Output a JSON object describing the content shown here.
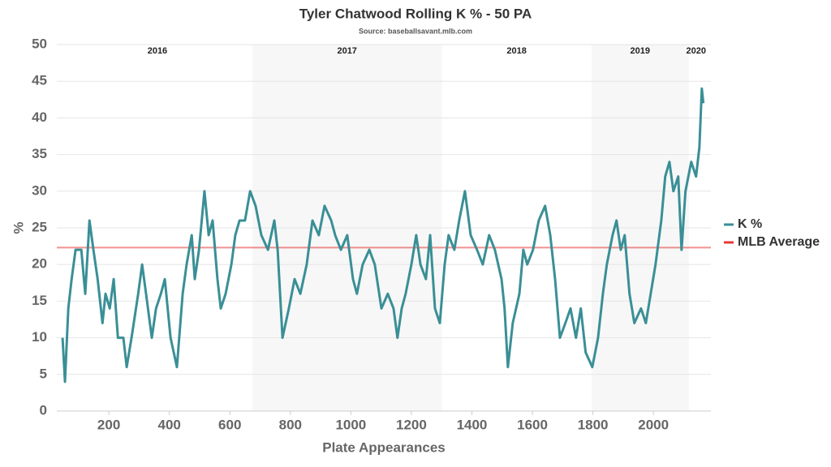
{
  "chart_data": {
    "type": "line",
    "title": "Tyler Chatwood Rolling K % - 50 PA",
    "subtitle": "Source: baseballsavant.mlb.com",
    "xlabel": "Plate Appearances",
    "ylabel": "%",
    "xlim": [
      28,
      2190
    ],
    "ylim": [
      0,
      50
    ],
    "xticks": [
      200,
      400,
      600,
      800,
      1000,
      1200,
      1400,
      1600,
      1800,
      2000
    ],
    "yticks": [
      0,
      5,
      10,
      15,
      20,
      25,
      30,
      35,
      40,
      45,
      50
    ],
    "grid": true,
    "legend": "right",
    "seasons": [
      {
        "label": "2016",
        "start": 47,
        "end": 674,
        "shaded": false
      },
      {
        "label": "2017",
        "start": 674,
        "end": 1301,
        "shaded": true
      },
      {
        "label": "2018",
        "start": 1301,
        "end": 1795,
        "shaded": false
      },
      {
        "label": "2019",
        "start": 1795,
        "end": 2117,
        "shaded": true
      },
      {
        "label": "2020",
        "start": 2117,
        "end": 2165,
        "shaded": false
      }
    ],
    "reference_line": {
      "name": "MLB Average",
      "value": 22.3,
      "color": "#e53935"
    },
    "x": [
      47,
      55,
      66,
      77,
      90,
      109,
      122,
      136,
      149,
      163,
      179,
      189,
      203,
      216,
      230,
      248,
      259,
      275,
      297,
      310,
      323,
      342,
      356,
      372,
      385,
      404,
      425,
      444,
      457,
      474,
      484,
      498,
      516,
      530,
      543,
      559,
      570,
      586,
      605,
      618,
      632,
      650,
      667,
      685,
      704,
      726,
      747,
      758,
      774,
      795,
      814,
      833,
      854,
      873,
      894,
      913,
      935,
      948,
      967,
      988,
      1007,
      1020,
      1039,
      1061,
      1079,
      1101,
      1122,
      1141,
      1154,
      1168,
      1181,
      1200,
      1216,
      1230,
      1248,
      1262,
      1278,
      1294,
      1310,
      1323,
      1342,
      1358,
      1377,
      1396,
      1417,
      1436,
      1457,
      1476,
      1498,
      1508,
      1519,
      1535,
      1557,
      1570,
      1583,
      1602,
      1621,
      1642,
      1659,
      1675,
      1691,
      1709,
      1726,
      1744,
      1760,
      1776,
      1798,
      1817,
      1833,
      1846,
      1865,
      1878,
      1892,
      1905,
      1921,
      1937,
      1959,
      1975,
      1991,
      2007,
      2026,
      2039,
      2053,
      2066,
      2082,
      2093,
      2106,
      2125,
      2141,
      2152,
      2160,
      2165
    ],
    "series": [
      {
        "name": "K %",
        "color": "#3a8f96",
        "values": [
          10,
          4,
          14,
          18,
          22,
          22,
          16,
          26,
          22,
          18,
          12,
          16,
          14,
          18,
          10,
          10,
          6,
          10,
          16,
          20,
          16,
          10,
          14,
          16,
          18,
          10,
          6,
          16,
          20,
          24,
          18,
          22,
          30,
          24,
          26,
          18,
          14,
          16,
          20,
          24,
          26,
          26,
          30,
          28,
          24,
          22,
          26,
          22,
          10,
          14,
          18,
          16,
          20,
          26,
          24,
          28,
          26,
          24,
          22,
          24,
          18,
          16,
          20,
          22,
          20,
          14,
          16,
          14,
          10,
          14,
          16,
          20,
          24,
          20,
          18,
          24,
          14,
          12,
          20,
          24,
          22,
          26,
          30,
          24,
          22,
          20,
          24,
          22,
          18,
          14,
          6,
          12,
          16,
          22,
          20,
          22,
          26,
          28,
          24,
          18,
          10,
          12,
          14,
          10,
          14,
          8,
          6,
          10,
          16,
          20,
          24,
          26,
          22,
          24,
          16,
          12,
          14,
          12,
          16,
          20,
          26,
          32,
          34,
          30,
          32,
          22,
          30,
          34,
          32,
          36,
          44,
          42
        ]
      }
    ]
  }
}
